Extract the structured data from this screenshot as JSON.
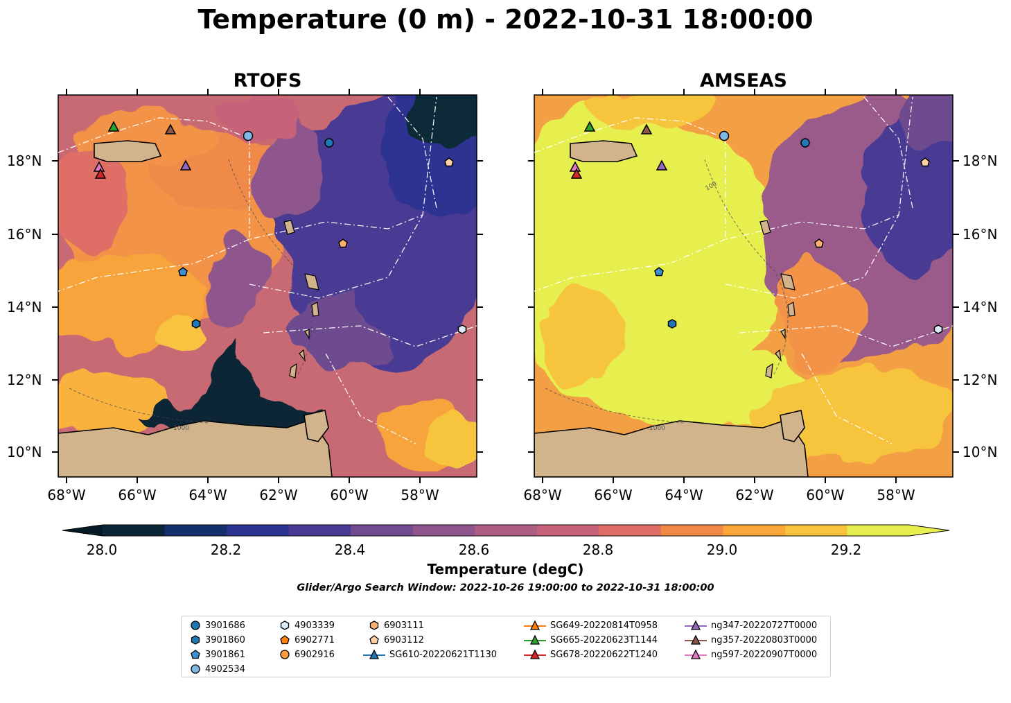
{
  "title": "Temperature (0 m) - 2022-10-31 18:00:00",
  "panels": [
    {
      "title": "RTOFS"
    },
    {
      "title": "AMSEAS"
    }
  ],
  "lat_labels": [
    "18°N",
    "16°N",
    "14°N",
    "12°N",
    "10°N"
  ],
  "lon_labels": [
    "68°W",
    "66°W",
    "64°W",
    "62°W",
    "60°W",
    "58°W"
  ],
  "contour_labels": [
    "100",
    "1000",
    "1000"
  ],
  "colorbar": {
    "label": "Temperature (degC)",
    "ticks": [
      "28.0",
      "28.2",
      "28.4",
      "28.6",
      "28.8",
      "29.0",
      "29.2"
    ],
    "colors": [
      "#0a2535",
      "#13306a",
      "#2d3391",
      "#4a3a93",
      "#6e4c8f",
      "#8f568d",
      "#ad5e81",
      "#c6637a",
      "#df6e66",
      "#f18a46",
      "#f9a63a",
      "#f8c33f",
      "#e7ef50"
    ],
    "under_color": "#061a25",
    "over_color": "#e8f04f"
  },
  "search_window": "Glider/Argo Search Window: 2022-10-26 19:00:00 to 2022-10-31 18:00:00",
  "legend": [
    {
      "label": "3901686",
      "marker": "circle",
      "color": "#1f77b4"
    },
    {
      "label": "3901860",
      "marker": "hexagon",
      "color": "#1f77b4"
    },
    {
      "label": "3901861",
      "marker": "pentagon",
      "color": "#3d8fd1"
    },
    {
      "label": "4902534",
      "marker": "circle",
      "color": "#7fb8e3"
    },
    {
      "label": "4903339",
      "marker": "hexagon",
      "color": "#d9ecf8"
    },
    {
      "label": "6902771",
      "marker": "pentagon",
      "color": "#ff7f0e"
    },
    {
      "label": "6902916",
      "marker": "circle",
      "color": "#ffa040"
    },
    {
      "label": "6903111",
      "marker": "hexagon",
      "color": "#ffb070"
    },
    {
      "label": "6903112",
      "marker": "pentagon",
      "color": "#ffd0a0"
    },
    {
      "label": "SG610-20220621T1130",
      "marker": "triangle-line",
      "color": "#1f77b4"
    },
    {
      "label": "SG649-20220814T0958",
      "marker": "triangle-line",
      "color": "#ff7f0e"
    },
    {
      "label": "SG665-20220623T1144",
      "marker": "triangle-line",
      "color": "#2ca02c"
    },
    {
      "label": "SG678-20220622T1240",
      "marker": "triangle-line",
      "color": "#d62728"
    },
    {
      "label": "ng347-20220727T0000",
      "marker": "triangle-line",
      "color": "#9467bd"
    },
    {
      "label": "ng357-20220803T0000",
      "marker": "triangle-line",
      "color": "#8c564b"
    },
    {
      "label": "ng597-20220907T0000",
      "marker": "triangle-line",
      "color": "#e377c2"
    }
  ]
}
